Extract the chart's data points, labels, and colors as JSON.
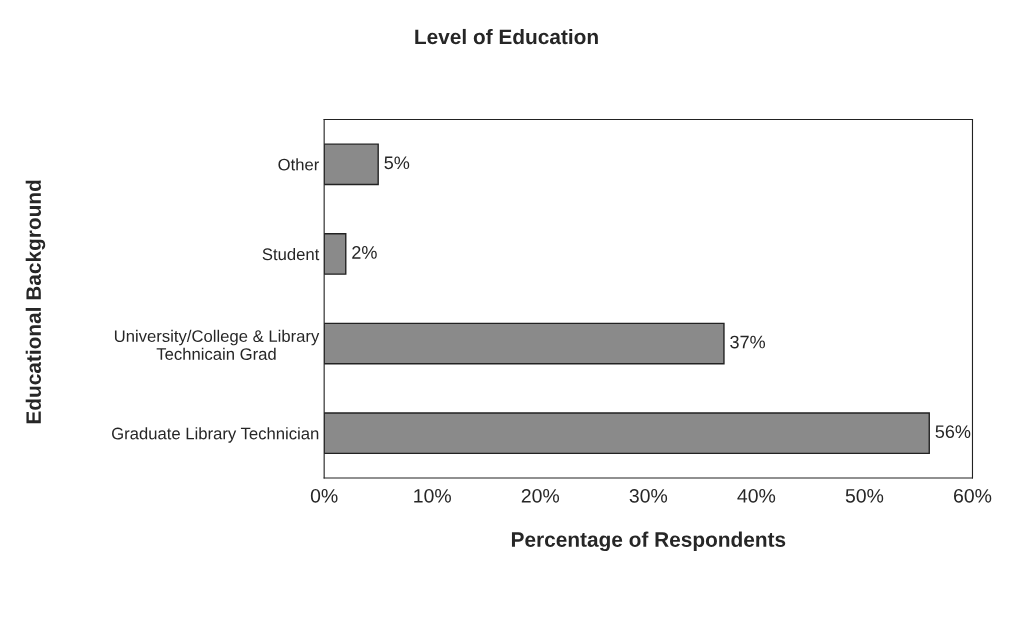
{
  "chart_data": {
    "type": "bar",
    "orientation": "horizontal",
    "title": "Level of Education",
    "xlabel": "Percentage of Respondents",
    "ylabel": "Educational Background",
    "categories": [
      "Other",
      "Student",
      "University/College & Library\nTechnicain Grad",
      "Graduate Library Technician"
    ],
    "values": [
      5,
      2,
      37,
      56
    ],
    "value_labels": [
      "5%",
      "2%",
      "37%",
      "56%"
    ],
    "color": "#8a8a8a",
    "xlim": [
      0,
      60
    ],
    "xticks": [
      {
        "value": 0,
        "label": "0%"
      },
      {
        "value": 10,
        "label": "10%"
      },
      {
        "value": 20,
        "label": "20%"
      },
      {
        "value": 30,
        "label": "30%"
      },
      {
        "value": 40,
        "label": "40%"
      },
      {
        "value": 50,
        "label": "50%"
      },
      {
        "value": 60,
        "label": "60%"
      }
    ],
    "grid": false,
    "legend": false
  }
}
